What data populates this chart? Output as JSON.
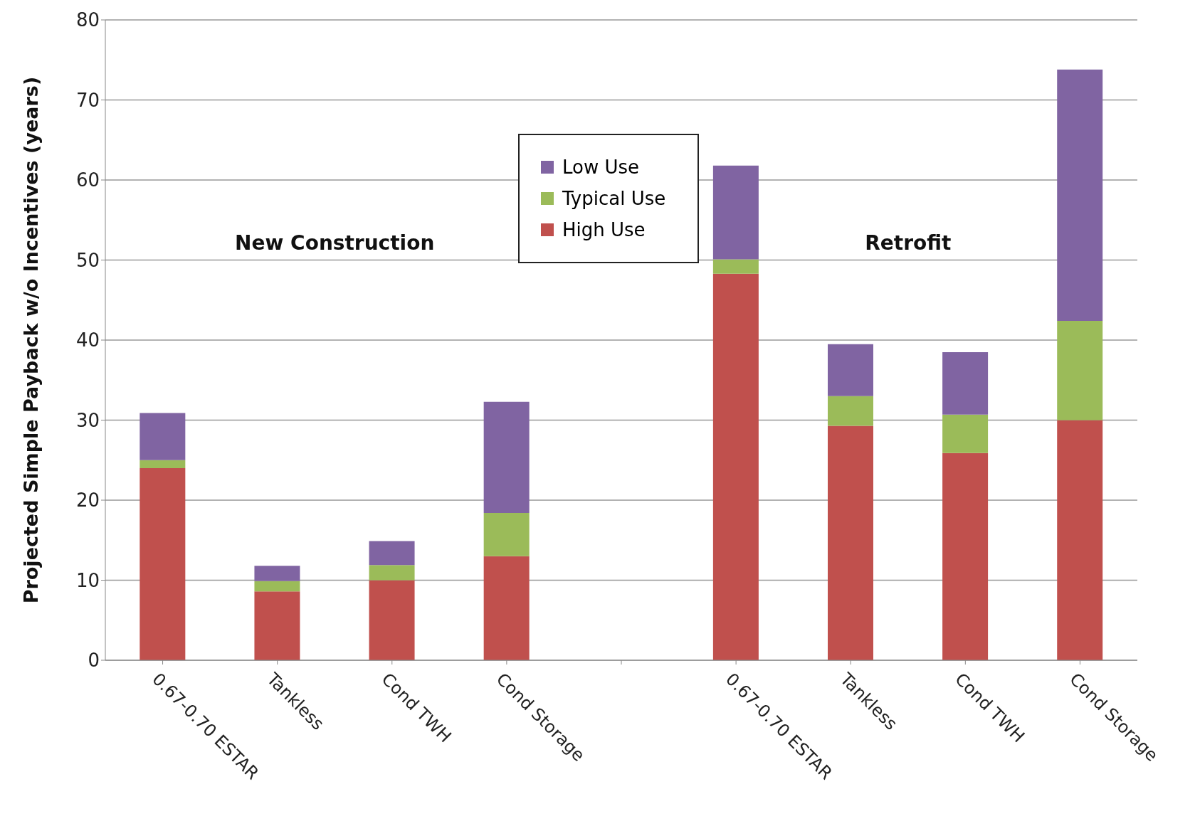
{
  "chart_data": {
    "type": "bar",
    "stacked": true,
    "ylabel": "Projected Simple Payback w/o Incentives (years)",
    "categories": [
      "0.67-0.70 ESTAR",
      "Tankless",
      "Cond TWH",
      "Cond Storage",
      null,
      "0.67-0.70 ESTAR",
      "Tankless",
      "Cond TWH",
      "Cond Storage"
    ],
    "series": [
      {
        "name": "High Use",
        "color": "#c0504d",
        "values": [
          24.0,
          8.6,
          10.0,
          13.0,
          null,
          48.3,
          29.3,
          25.9,
          30.0
        ]
      },
      {
        "name": "Typical Use",
        "color": "#9bbb59",
        "values": [
          1.0,
          1.3,
          1.9,
          5.4,
          null,
          1.8,
          3.7,
          4.8,
          12.4
        ]
      },
      {
        "name": "Low Use",
        "color": "#8064a2",
        "values": [
          5.9,
          1.9,
          3.0,
          13.9,
          null,
          11.7,
          6.5,
          7.8,
          31.4
        ]
      }
    ],
    "annotations": [
      "New Construction",
      "Retrofit"
    ],
    "ylim": [
      0,
      80
    ],
    "yticks": [
      0,
      10,
      20,
      30,
      40,
      50,
      60,
      70,
      80
    ],
    "grid": "y",
    "legend": "top"
  }
}
